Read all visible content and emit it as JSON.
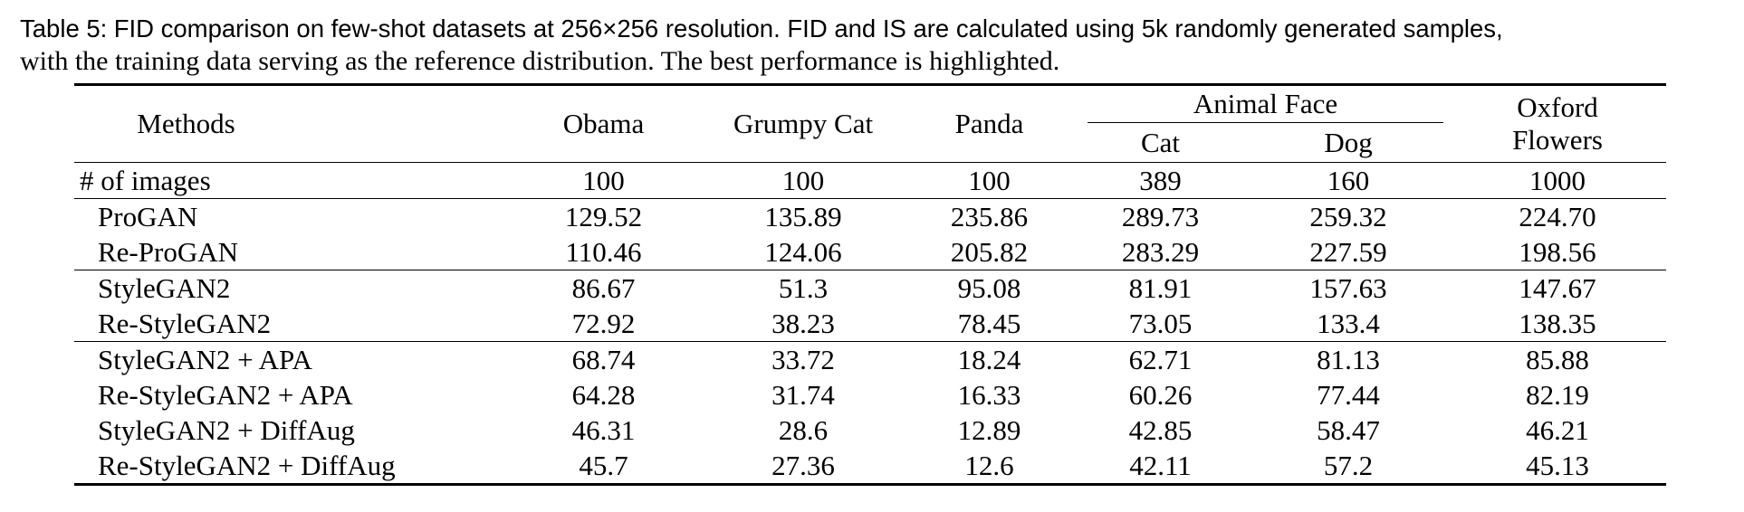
{
  "caption": {
    "label": "Table 5:",
    "text_line1": "FID comparison on few-shot datasets at 256×256 resolution. FID and IS are calculated using 5k randomly generated samples,",
    "text_line2": "with the training data serving as the reference distribution. The best performance is highlighted."
  },
  "table": {
    "header": {
      "methods": "Methods",
      "obama": "Obama",
      "grumpy_cat": "Grumpy Cat",
      "panda": "Panda",
      "animal_face": "Animal Face",
      "cat": "Cat",
      "dog": "Dog",
      "oxford_line1": "Oxford",
      "oxford_line2": "Flowers"
    },
    "num_images": {
      "label": "# of images",
      "values": [
        "100",
        "100",
        "100",
        "389",
        "160",
        "1000"
      ]
    },
    "rows": [
      {
        "method": "ProGAN",
        "values": [
          "129.52",
          "135.89",
          "235.86",
          "289.73",
          "259.32",
          "224.70"
        ],
        "best": false
      },
      {
        "method": "Re-ProGAN",
        "values": [
          "110.46",
          "124.06",
          "205.82",
          "283.29",
          "227.59",
          "198.56"
        ],
        "best": true
      },
      {
        "method": "StyleGAN2",
        "values": [
          "86.67",
          "51.3",
          "95.08",
          "81.91",
          "157.63",
          "147.67"
        ],
        "best": false
      },
      {
        "method": "Re-StyleGAN2",
        "values": [
          "72.92",
          "38.23",
          "78.45",
          "73.05",
          "133.4",
          "138.35"
        ],
        "best": true
      },
      {
        "method": "StyleGAN2 + APA",
        "values": [
          "68.74",
          "33.72",
          "18.24",
          "62.71",
          "81.13",
          "85.88"
        ],
        "best": false
      },
      {
        "method": "Re-StyleGAN2 + APA",
        "values": [
          "64.28",
          "31.74",
          "16.33",
          "60.26",
          "77.44",
          "82.19"
        ],
        "best": true
      },
      {
        "method": "StyleGAN2 + DiffAug",
        "values": [
          "46.31",
          "28.6",
          "12.89",
          "42.85",
          "58.47",
          "46.21"
        ],
        "best": false
      },
      {
        "method": "Re-StyleGAN2 + DiffAug",
        "values": [
          "45.7",
          "27.36",
          "12.6",
          "42.11",
          "57.2",
          "45.13"
        ],
        "best": true
      }
    ]
  }
}
